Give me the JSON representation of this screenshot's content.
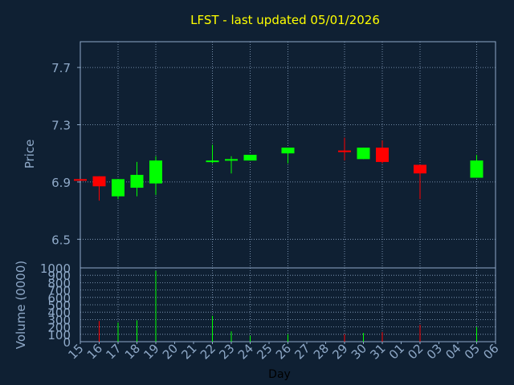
{
  "chart_data": [
    {
      "type": "candlestick",
      "title": "LFST - last updated 05/01/2026",
      "ylabel": "Price",
      "yticks": [
        "7.7",
        "7.3",
        "6.9",
        "6.5"
      ],
      "ytick_values": [
        7.7,
        7.3,
        6.9,
        6.5
      ],
      "ylim": [
        6.3,
        7.88
      ],
      "grid": true,
      "up_color": "#00ff00",
      "down_color": "#ff0000",
      "candles": [
        {
          "day": "15",
          "open": 6.92,
          "high": 6.92,
          "low": 6.91,
          "close": 6.91
        },
        {
          "day": "16",
          "open": 6.94,
          "high": 6.94,
          "low": 6.77,
          "close": 6.87
        },
        {
          "day": "17",
          "open": 6.8,
          "high": 6.91,
          "low": 6.78,
          "close": 6.92
        },
        {
          "day": "18",
          "open": 6.86,
          "high": 7.04,
          "low": 6.8,
          "close": 6.95
        },
        {
          "day": "19",
          "open": 6.89,
          "high": 7.08,
          "low": 6.81,
          "close": 7.05
        },
        {
          "day": "22",
          "open": 7.04,
          "high": 7.16,
          "low": 7.03,
          "close": 7.05
        },
        {
          "day": "23",
          "open": 7.05,
          "high": 7.08,
          "low": 6.96,
          "close": 7.06
        },
        {
          "day": "24",
          "open": 7.05,
          "high": 7.09,
          "low": 7.05,
          "close": 7.09
        },
        {
          "day": "26",
          "open": 7.1,
          "high": 7.14,
          "low": 7.03,
          "close": 7.14
        },
        {
          "day": "29",
          "open": 7.12,
          "high": 7.21,
          "low": 7.05,
          "close": 7.11
        },
        {
          "day": "30",
          "open": 7.06,
          "high": 7.14,
          "low": 7.06,
          "close": 7.14
        },
        {
          "day": "31",
          "open": 7.14,
          "high": 7.19,
          "low": 7.03,
          "close": 7.04
        },
        {
          "day": "02",
          "open": 7.02,
          "high": 7.02,
          "low": 6.78,
          "close": 6.96
        },
        {
          "day": "05",
          "open": 6.93,
          "high": 7.09,
          "low": 6.93,
          "close": 7.05
        }
      ]
    },
    {
      "type": "bar",
      "ylabel": "Volume (0000)",
      "xlabel": "Day",
      "yticks": [
        "1000",
        "900",
        "800",
        "700",
        "600",
        "500",
        "400",
        "300",
        "200",
        "100",
        "0"
      ],
      "ytick_values": [
        1000,
        900,
        800,
        700,
        600,
        500,
        400,
        300,
        200,
        100,
        0
      ],
      "ylim": [
        0,
        1000
      ],
      "grid": true,
      "categories": [
        "15",
        "16",
        "17",
        "18",
        "19",
        "20",
        "21",
        "22",
        "23",
        "24",
        "25",
        "26",
        "27",
        "28",
        "29",
        "30",
        "31",
        "01",
        "02",
        "03",
        "04",
        "05",
        "06"
      ],
      "values": [
        0,
        280,
        260,
        290,
        960,
        0,
        0,
        350,
        140,
        80,
        0,
        100,
        0,
        0,
        100,
        120,
        130,
        0,
        230,
        0,
        0,
        200,
        0
      ],
      "colors": [
        "",
        "#ff0000",
        "#00ff00",
        "#00ff00",
        "#00ff00",
        "",
        "",
        "#00ff00",
        "#00ff00",
        "#00ff00",
        "",
        "#00ff00",
        "",
        "",
        "#ff0000",
        "#00ff00",
        "#ff0000",
        "",
        "#ff0000",
        "",
        "",
        "#00ff00",
        ""
      ]
    }
  ]
}
